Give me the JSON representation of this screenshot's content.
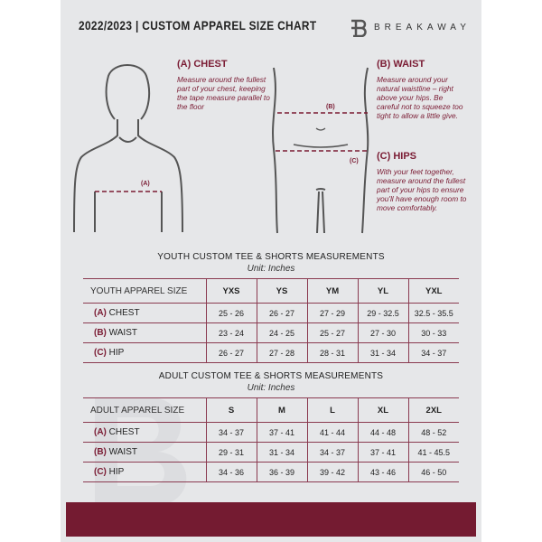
{
  "header": {
    "title": "2022/2023  |  CUSTOM APPAREL SIZE CHART",
    "brand": "BREAKAWAY"
  },
  "guide": {
    "chest": {
      "title": "(A) CHEST",
      "text": "Measure around the fullest part of your chest, keeping the tape measure parallel to the floor",
      "marker": "(A)"
    },
    "waist": {
      "title": "(B) WAIST",
      "text": "Measure around your natural waistline – right above your hips. Be careful not to squeeze too tight to allow a little give.",
      "marker": "(B)"
    },
    "hips": {
      "title": "(C) HIPS",
      "text": "With your feet together, measure around the fullest part of your hips to ensure you'll have enough room to move comfortably.",
      "marker": "(C)"
    }
  },
  "youth": {
    "title": "YOUTH CUSTOM TEE & SHORTS MEASUREMENTS",
    "unit": "Unit: Inches",
    "header": "YOUTH APPAREL SIZE",
    "sizes": [
      "YXS",
      "YS",
      "YM",
      "YL",
      "YXL"
    ],
    "rows": [
      {
        "tag": "(A)",
        "label": "CHEST",
        "values": [
          "25 - 26",
          "26 - 27",
          "27 - 29",
          "29 - 32.5",
          "32.5 - 35.5"
        ]
      },
      {
        "tag": "(B)",
        "label": "WAIST",
        "values": [
          "23 - 24",
          "24 - 25",
          "25 - 27",
          "27 - 30",
          "30 - 33"
        ]
      },
      {
        "tag": "(C)",
        "label": "HIP",
        "values": [
          "26 - 27",
          "27 - 28",
          "28 - 31",
          "31 - 34",
          "34 - 37"
        ]
      }
    ]
  },
  "adult": {
    "title": "ADULT CUSTOM TEE & SHORTS MEASUREMENTS",
    "unit": "Unit: Inches",
    "header": "ADULT APPAREL SIZE",
    "sizes": [
      "S",
      "M",
      "L",
      "XL",
      "2XL"
    ],
    "rows": [
      {
        "tag": "(A)",
        "label": "CHEST",
        "values": [
          "34 - 37",
          "37 - 41",
          "41 - 44",
          "44 - 48",
          "48 - 52"
        ]
      },
      {
        "tag": "(B)",
        "label": "WAIST",
        "values": [
          "29 - 31",
          "31 - 34",
          "34 - 37",
          "37 - 41",
          "41 - 45.5"
        ]
      },
      {
        "tag": "(C)",
        "label": "HIP",
        "values": [
          "34 - 36",
          "36 - 39",
          "39 - 42",
          "43 - 46",
          "46 - 50"
        ]
      }
    ]
  },
  "colors": {
    "accent": "#741b31",
    "panel": "#e6e7e9"
  }
}
